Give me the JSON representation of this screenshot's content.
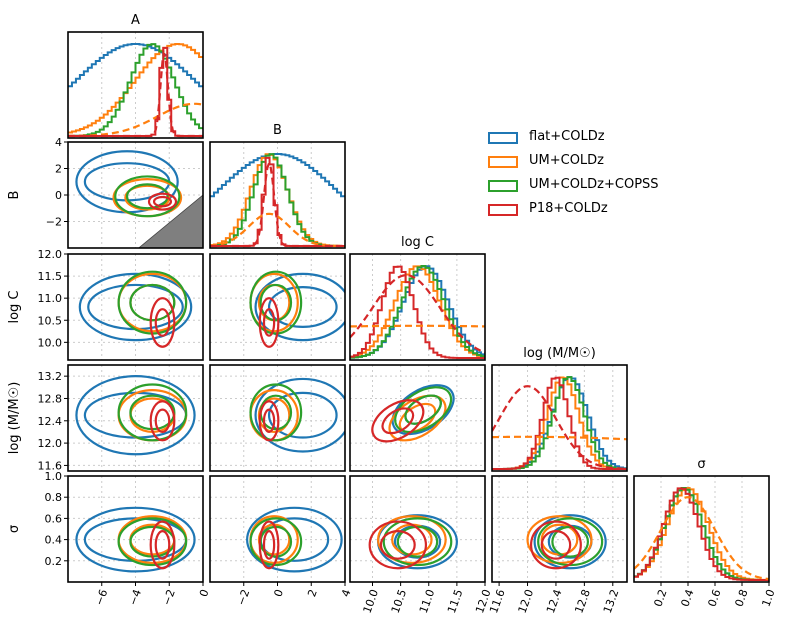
{
  "chart_data": {
    "type": "corner",
    "description_free": true,
    "parameters": [
      {
        "key": "A",
        "label": "A",
        "range": [
          -8,
          0
        ],
        "ticks": [
          -6,
          -4,
          -2,
          0
        ],
        "tick_labels": [
          "−6",
          "−4",
          "−2",
          "0"
        ]
      },
      {
        "key": "B",
        "label": "B",
        "range": [
          -4,
          4
        ],
        "ticks": [
          -2,
          0,
          2,
          4
        ],
        "tick_labels": [
          "−2",
          "0",
          "2",
          "4"
        ]
      },
      {
        "key": "logC",
        "label": "log C",
        "range": [
          9.6,
          12.0
        ],
        "ticks": [
          10.0,
          10.5,
          11.0,
          11.5,
          12.0
        ],
        "tick_labels": [
          "10.0",
          "10.5",
          "11.0",
          "11.5",
          "12.0"
        ]
      },
      {
        "key": "logM",
        "label": "log (M/M☉)",
        "range": [
          11.5,
          13.4
        ],
        "ticks": [
          11.6,
          12.0,
          12.4,
          12.8,
          13.2
        ],
        "tick_labels": [
          "11.6",
          "12.0",
          "12.4",
          "12.8",
          "13.2"
        ]
      },
      {
        "key": "sigma",
        "label": "σ",
        "range": [
          0.0,
          1.0
        ],
        "ticks": [
          0.2,
          0.4,
          0.6,
          0.8,
          1.0
        ],
        "tick_labels": [
          "0.2",
          "0.4",
          "0.6",
          "0.8",
          "1.0"
        ]
      }
    ],
    "y_axis": {
      "B": {
        "ticks": [
          -2,
          0,
          2,
          4
        ],
        "tick_labels": [
          "−2",
          "0",
          "2",
          "4"
        ]
      },
      "logC": {
        "ticks": [
          10.0,
          10.5,
          11.0,
          11.5,
          12.0
        ],
        "tick_labels": [
          "10.0",
          "10.5",
          "11.0",
          "11.5",
          "12.0"
        ]
      },
      "logM": {
        "ticks": [
          11.6,
          12.0,
          12.4,
          12.8,
          13.2
        ],
        "tick_labels": [
          "11.6",
          "12.0",
          "12.4",
          "12.8",
          "13.2"
        ]
      },
      "sigma": {
        "ticks": [
          0.2,
          0.4,
          0.6,
          0.8,
          1.0
        ],
        "tick_labels": [
          "0.2",
          "0.4",
          "0.6",
          "0.8",
          "1.0"
        ]
      }
    },
    "y_axis_labels": {
      "B": "B",
      "logC": "log C",
      "logM": "log (M/M☉)",
      "sigma": "σ"
    },
    "series": [
      {
        "name": "flat+COLDz",
        "color": "#1f77b4",
        "marginals": {
          "A": {
            "mean": -4.0,
            "sd": 3.5
          },
          "B": {
            "mean": 0.0,
            "sd": 3.5
          },
          "logC": {
            "mean": 10.95,
            "sd": 0.4
          },
          "logM": {
            "mean": 12.6,
            "sd": 0.25
          },
          "sigma": {
            "mean": 0.37,
            "sd": 0.14
          }
        },
        "contours": {
          "A-B": {
            "center": [
              -4.5,
              1.0
            ],
            "r1": [
              2.5,
              1.4
            ],
            "r2": [
              3.0,
              2.3
            ]
          },
          "A-logC": {
            "center": [
              -4.0,
              10.8
            ],
            "r1": [
              2.8,
              0.5
            ],
            "r2": [
              3.3,
              0.75
            ]
          },
          "A-logM": {
            "center": [
              -4.0,
              12.5
            ],
            "r1": [
              3.0,
              0.4
            ],
            "r2": [
              3.5,
              0.7
            ]
          },
          "A-sigma": {
            "center": [
              -4.0,
              0.4
            ],
            "r1": [
              3.0,
              0.2
            ],
            "r2": [
              3.5,
              0.3
            ]
          },
          "B-logC": {
            "center": [
              1.5,
              10.8
            ],
            "r1": [
              2.0,
              0.45
            ],
            "r2": [
              2.8,
              0.75
            ]
          },
          "B-logM": {
            "center": [
              1.5,
              12.5
            ],
            "r1": [
              2.0,
              0.4
            ],
            "r2": [
              2.8,
              0.65
            ]
          },
          "B-sigma": {
            "center": [
              1.0,
              0.4
            ],
            "r1": [
              2.0,
              0.2
            ],
            "r2": [
              2.8,
              0.3
            ]
          },
          "logC-logM": {
            "center": [
              10.9,
              12.6
            ],
            "r1": [
              0.35,
              0.2
            ],
            "r2": [
              0.6,
              0.35
            ]
          },
          "logC-sigma": {
            "center": [
              10.8,
              0.38
            ],
            "r1": [
              0.4,
              0.15
            ],
            "r2": [
              0.7,
              0.25
            ]
          },
          "logM-sigma": {
            "center": [
              12.6,
              0.38
            ],
            "r1": [
              0.3,
              0.15
            ],
            "r2": [
              0.5,
              0.25
            ]
          }
        }
      },
      {
        "name": "UM+COLDz",
        "color": "#ff7f0e",
        "marginals": {
          "A": {
            "mean": -1.5,
            "sd": 2.5
          },
          "B": {
            "mean": -0.5,
            "sd": 1.1
          },
          "logC": {
            "mean": 10.8,
            "sd": 0.4
          },
          "logM": {
            "mean": 12.5,
            "sd": 0.22
          },
          "sigma": {
            "mean": 0.4,
            "sd": 0.15
          }
        },
        "contours": {
          "A-B": {
            "center": [
              -3.3,
              -0.2
            ],
            "r1": [
              1.3,
              0.9
            ],
            "r2": [
              2.0,
              1.4
            ]
          },
          "A-logC": {
            "center": [
              -3.0,
              10.9
            ],
            "r1": [
              1.3,
              0.4
            ],
            "r2": [
              2.0,
              0.65
            ]
          },
          "A-logM": {
            "center": [
              -3.0,
              12.5
            ],
            "r1": [
              1.3,
              0.3
            ],
            "r2": [
              2.0,
              0.45
            ]
          },
          "A-sigma": {
            "center": [
              -3.0,
              0.4
            ],
            "r1": [
              1.3,
              0.14
            ],
            "r2": [
              2.0,
              0.22
            ]
          },
          "B-logC": {
            "center": [
              -0.2,
              10.9
            ],
            "r1": [
              0.9,
              0.4
            ],
            "r2": [
              1.4,
              0.65
            ]
          },
          "B-logM": {
            "center": [
              -0.2,
              12.5
            ],
            "r1": [
              0.9,
              0.3
            ],
            "r2": [
              1.4,
              0.45
            ]
          },
          "B-sigma": {
            "center": [
              -0.2,
              0.4
            ],
            "r1": [
              0.9,
              0.14
            ],
            "r2": [
              1.4,
              0.22
            ]
          },
          "logC-logM": {
            "center": [
              10.8,
              12.45
            ],
            "r1": [
              0.35,
              0.2
            ],
            "r2": [
              0.55,
              0.32
            ]
          },
          "logC-sigma": {
            "center": [
              10.7,
              0.4
            ],
            "r1": [
              0.35,
              0.14
            ],
            "r2": [
              0.6,
              0.22
            ]
          },
          "logM-sigma": {
            "center": [
              12.45,
              0.4
            ],
            "r1": [
              0.25,
              0.14
            ],
            "r2": [
              0.45,
              0.22
            ]
          }
        }
      },
      {
        "name": "UM+COLDz+COPSS",
        "color": "#2ca02c",
        "marginals": {
          "A": {
            "mean": -3.0,
            "sd": 1.3
          },
          "B": {
            "mean": -0.4,
            "sd": 1.0
          },
          "logC": {
            "mean": 10.9,
            "sd": 0.38
          },
          "logM": {
            "mean": 12.58,
            "sd": 0.22
          },
          "sigma": {
            "mean": 0.37,
            "sd": 0.14
          }
        },
        "contours": {
          "A-B": {
            "center": [
              -3.3,
              -0.1
            ],
            "r1": [
              1.2,
              0.9
            ],
            "r2": [
              1.9,
              1.5
            ]
          },
          "A-logC": {
            "center": [
              -3.0,
              10.9
            ],
            "r1": [
              1.3,
              0.4
            ],
            "r2": [
              2.0,
              0.7
            ]
          },
          "A-logM": {
            "center": [
              -3.0,
              12.55
            ],
            "r1": [
              1.3,
              0.3
            ],
            "r2": [
              2.0,
              0.5
            ]
          },
          "A-sigma": {
            "center": [
              -3.0,
              0.38
            ],
            "r1": [
              1.3,
              0.14
            ],
            "r2": [
              2.0,
              0.22
            ]
          },
          "B-logC": {
            "center": [
              -0.1,
              10.9
            ],
            "r1": [
              0.9,
              0.4
            ],
            "r2": [
              1.5,
              0.7
            ]
          },
          "B-logM": {
            "center": [
              -0.1,
              12.55
            ],
            "r1": [
              0.9,
              0.3
            ],
            "r2": [
              1.5,
              0.5
            ]
          },
          "B-sigma": {
            "center": [
              -0.1,
              0.38
            ],
            "r1": [
              0.9,
              0.14
            ],
            "r2": [
              1.5,
              0.22
            ]
          },
          "logC-logM": {
            "center": [
              10.9,
              12.6
            ],
            "r1": [
              0.35,
              0.2
            ],
            "r2": [
              0.55,
              0.32
            ]
          },
          "logC-sigma": {
            "center": [
              10.8,
              0.38
            ],
            "r1": [
              0.35,
              0.14
            ],
            "r2": [
              0.6,
              0.22
            ]
          },
          "logM-sigma": {
            "center": [
              12.6,
              0.38
            ],
            "r1": [
              0.25,
              0.14
            ],
            "r2": [
              0.45,
              0.22
            ]
          }
        }
      },
      {
        "name": "P18+COLDz",
        "color": "#d62728",
        "marginals": {
          "A": {
            "mean": -2.3,
            "sd": 0.22
          },
          "B": {
            "mean": -0.5,
            "sd": 0.3
          },
          "logC": {
            "mean": 10.45,
            "sd": 0.28
          },
          "logM": {
            "mean": 12.4,
            "sd": 0.18
          },
          "sigma": {
            "mean": 0.35,
            "sd": 0.13
          }
        },
        "contours": {
          "A-B": {
            "center": [
              -2.4,
              -0.5
            ],
            "r1": [
              0.5,
              0.35
            ],
            "r2": [
              0.8,
              0.6
            ]
          },
          "A-logC": {
            "center": [
              -2.4,
              10.45
            ],
            "r1": [
              0.4,
              0.3
            ],
            "r2": [
              0.7,
              0.55
            ]
          },
          "A-logM": {
            "center": [
              -2.4,
              12.4
            ],
            "r1": [
              0.4,
              0.2
            ],
            "r2": [
              0.7,
              0.35
            ]
          },
          "A-sigma": {
            "center": [
              -2.4,
              0.35
            ],
            "r1": [
              0.4,
              0.13
            ],
            "r2": [
              0.7,
              0.22
            ]
          },
          "B-logC": {
            "center": [
              -0.5,
              10.45
            ],
            "r1": [
              0.3,
              0.3
            ],
            "r2": [
              0.55,
              0.55
            ]
          },
          "B-logM": {
            "center": [
              -0.5,
              12.4
            ],
            "r1": [
              0.3,
              0.2
            ],
            "r2": [
              0.55,
              0.35
            ]
          },
          "B-sigma": {
            "center": [
              -0.5,
              0.35
            ],
            "r1": [
              0.3,
              0.13
            ],
            "r2": [
              0.55,
              0.22
            ]
          },
          "logC-logM": {
            "center": [
              10.45,
              12.4
            ],
            "r1": [
              0.3,
              0.18
            ],
            "r2": [
              0.5,
              0.3
            ]
          },
          "logC-sigma": {
            "center": [
              10.45,
              0.35
            ],
            "r1": [
              0.3,
              0.13
            ],
            "r2": [
              0.5,
              0.22
            ]
          },
          "logM-sigma": {
            "center": [
              12.4,
              0.35
            ],
            "r1": [
              0.2,
              0.13
            ],
            "r2": [
              0.35,
              0.22
            ]
          }
        }
      }
    ],
    "prior_curves": [
      {
        "param": "A",
        "color": "#ff7f0e",
        "mean": -0.5,
        "sd": 2.2
      },
      {
        "param": "A",
        "color": "#d62728",
        "mean": -2.3,
        "sd": 0.22
      },
      {
        "param": "B",
        "color": "#ff7f0e",
        "mean": -0.5,
        "sd": 1.2
      },
      {
        "param": "B",
        "color": "#d62728",
        "mean": -0.5,
        "sd": 0.3
      },
      {
        "param": "logC",
        "color": "#ff7f0e",
        "mean": 10.8,
        "sd": 6.0
      },
      {
        "param": "logC",
        "color": "#d62728",
        "mean": 10.6,
        "sd": 0.6
      },
      {
        "param": "logM",
        "color": "#ff7f0e",
        "mean": 12.0,
        "sd": 3.5
      },
      {
        "param": "logM",
        "color": "#d62728",
        "mean": 12.0,
        "sd": 0.4
      },
      {
        "param": "sigma",
        "color": "#ff7f0e",
        "mean": 0.4,
        "sd": 0.2
      }
    ],
    "excluded_region": {
      "panel": "A-B",
      "points": [
        [
          -4,
          -4.2
        ],
        [
          0,
          -4.2
        ],
        [
          0,
          0
        ]
      ],
      "color": "#7f7f7f"
    },
    "legend": {
      "position": "upper-right",
      "entries": [
        "flat+COLDz",
        "UM+COLDz",
        "UM+COLDz+COPSS",
        "P18+COLDz"
      ]
    },
    "grid": true
  }
}
